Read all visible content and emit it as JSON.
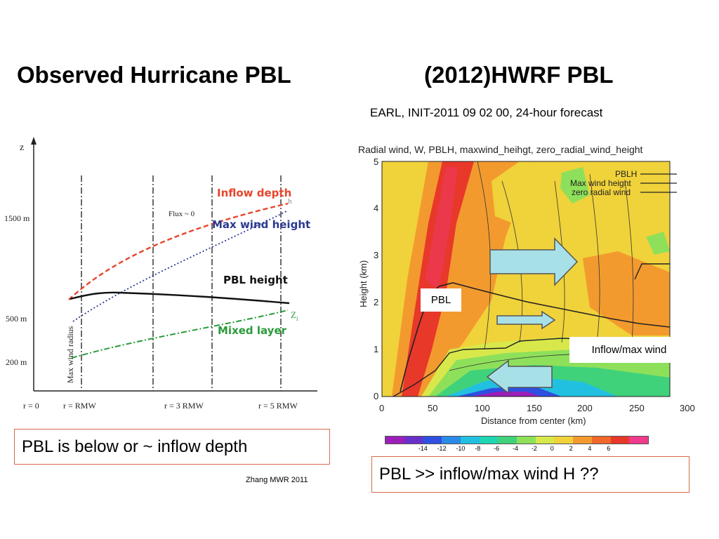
{
  "left": {
    "title": "Observed Hurricane PBL",
    "chart": {
      "z_label": "z",
      "heights": [
        "1500 m",
        "500 m",
        "200 m"
      ],
      "x_ticks": [
        "r = 0",
        "r = RMW",
        "r = 3 RMW",
        "r = 5 RMW"
      ],
      "vertical_axis_label": "Max wind radius",
      "flux_label": "Flux ~ 0",
      "zi_label": "Z",
      "zi_sub": "i",
      "h_label": "h"
    },
    "legend": {
      "inflow_depth": "Inflow depth",
      "max_wind_height": "Max wind height",
      "pbl_height": "PBL height",
      "mixed_layer": "Mixed layer"
    },
    "callout": "PBL is below or ~ inflow depth",
    "credit": "Zhang MWR 2011",
    "colors": {
      "inflow": "#e8452c",
      "maxwind": "#2b3a8f",
      "pbl": "#111111",
      "mixed": "#2a9a3a"
    }
  },
  "right": {
    "title": "(2012)HWRF PBL",
    "subtitle": "EARL, INIT-2011 09 02 00, 24-hour forecast",
    "chart": {
      "header": "Radial wind, W, PBLH, maxwind_heihgt, zero_radial_wind_height",
      "xlabel": "Distance from center (km)",
      "ylabel": "Height (km)",
      "x_ticks": [
        "0",
        "50",
        "100",
        "150",
        "200",
        "250",
        "300"
      ],
      "y_ticks": [
        "0",
        "1",
        "2",
        "3",
        "4",
        "5"
      ],
      "legend": [
        "PBLH",
        "Max wind height",
        "zero radial wind"
      ],
      "colorbar_ticks": [
        "-14",
        "-12",
        "-10",
        "-8",
        "-6",
        "-4",
        "-2",
        "0",
        "2",
        "4",
        "6"
      ],
      "colorbar_colors": [
        "#9b1fb8",
        "#6a2fc9",
        "#2f4fe0",
        "#2a8ae8",
        "#22c0e0",
        "#1ed6b0",
        "#3fd27a",
        "#8ee05a",
        "#d8e84a",
        "#f0d23a",
        "#f39a2e",
        "#f0682a",
        "#e8382a",
        "#f03a8a"
      ]
    },
    "annotations": {
      "pbl": "PBL",
      "inflow_max_wind": "Inflow/max wind"
    },
    "callout": "PBL >> inflow/max wind H ??"
  }
}
